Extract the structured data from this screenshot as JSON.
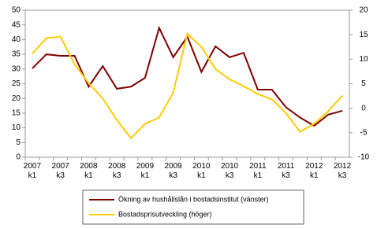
{
  "chart_data": {
    "type": "line",
    "categories": [
      "2007 k1",
      null,
      "2007 k3",
      null,
      "2008 k1",
      null,
      "2008 k3",
      null,
      "2009 k1",
      null,
      "2009 k3",
      null,
      "2010 k1",
      null,
      "2010 k3",
      null,
      "2011 k1",
      null,
      "2011 k3",
      null,
      "2012 k1",
      null,
      "2012 k3"
    ],
    "series": [
      {
        "name": "Ökning av hushållslån i bostadsinstitut (vänster)",
        "color": "#800000",
        "axis": "y",
        "values": [
          30.2,
          35,
          34.5,
          34.5,
          24,
          31,
          23.3,
          24,
          27,
          44,
          34,
          41,
          29,
          37.7,
          34,
          35.5,
          23,
          23,
          17,
          13.5,
          10.7,
          14.5,
          15.8
        ]
      },
      {
        "name": "Bostadsprisutveckling (höger)",
        "color": "#ffcc00",
        "axis": "y2",
        "values": [
          11.1,
          14.3,
          14.6,
          9,
          5.1,
          2,
          -2.4,
          -6.1,
          -3.2,
          -1.9,
          3.2,
          15.2,
          12.5,
          8,
          5.9,
          4.5,
          2.9,
          1.8,
          -1,
          -4.8,
          -3.2,
          -0.6,
          2.6
        ]
      }
    ],
    "ylim": [
      0,
      50
    ],
    "yticks": [
      0,
      5,
      10,
      15,
      20,
      25,
      30,
      35,
      40,
      45,
      50
    ],
    "y2lim": [
      -10,
      20
    ],
    "y2ticks": [
      -10,
      -5,
      0,
      5,
      10,
      15,
      20
    ],
    "legend": "bottom"
  }
}
